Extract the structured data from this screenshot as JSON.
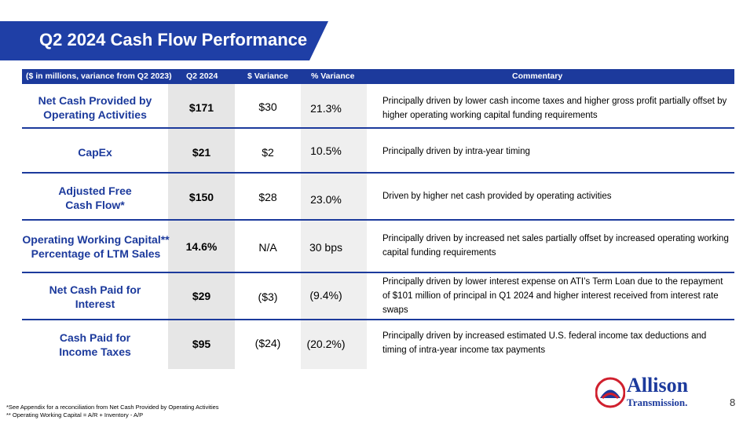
{
  "title": "Q2 2024 Cash Flow Performance",
  "header": {
    "units": "($ in millions, variance from Q2 2023)",
    "q2": "Q2 2024",
    "dollar_variance": "$ Variance",
    "pct_variance": "% Variance",
    "commentary": "Commentary"
  },
  "rows": [
    {
      "label_1": "Net Cash Provided by",
      "label_2": "Operating Activities",
      "q2": "$171",
      "dv": "$30",
      "pv": "21.3%",
      "comment": "Principally driven by lower cash income taxes and higher gross profit partially offset by higher operating working capital funding requirements"
    },
    {
      "label_1": "CapEx",
      "label_2": "",
      "q2": "$21",
      "dv": "$2",
      "pv": "10.5%",
      "comment": "Principally driven by intra-year timing"
    },
    {
      "label_1": "Adjusted Free",
      "label_2": "Cash Flow*",
      "q2": "$150",
      "dv": "$28",
      "pv": "23.0%",
      "comment": "Driven by higher net cash provided by operating activities"
    },
    {
      "label_1": "Operating Working Capital**",
      "label_2": "Percentage of LTM Sales",
      "q2": "14.6%",
      "dv": "N/A",
      "pv": "30 bps",
      "comment": "Principally driven by increased net sales partially offset by increased operating working capital funding requirements"
    },
    {
      "label_1": "Net Cash Paid for",
      "label_2": "Interest",
      "q2": "$29",
      "dv": "($3)",
      "pv": "(9.4%)",
      "comment": "Principally driven by lower interest expense on ATI’s Term Loan due to the repayment of $101 million of principal in Q1 2024 and higher interest received from interest rate swaps"
    },
    {
      "label_1": "Cash Paid for",
      "label_2": "Income Taxes",
      "q2": "$95",
      "dv": "($24)",
      "pv": "(20.2%)",
      "comment": "Principally driven by increased estimated U.S. federal income tax deductions and timing of intra-year income tax payments"
    }
  ],
  "footnotes": {
    "line1": "*See Appendix for a reconciliation from Net Cash Provided by Operating Activities",
    "line2": "** Operating Working Capital = A/R + Inventory - A/P"
  },
  "logo": {
    "word1": "Allison",
    "word2": "Transmission."
  },
  "page_number": "8",
  "colors": {
    "brand_blue": "#1c3a9c",
    "banner_blue": "#1f3fa6",
    "logo_red": "#d0202e"
  }
}
